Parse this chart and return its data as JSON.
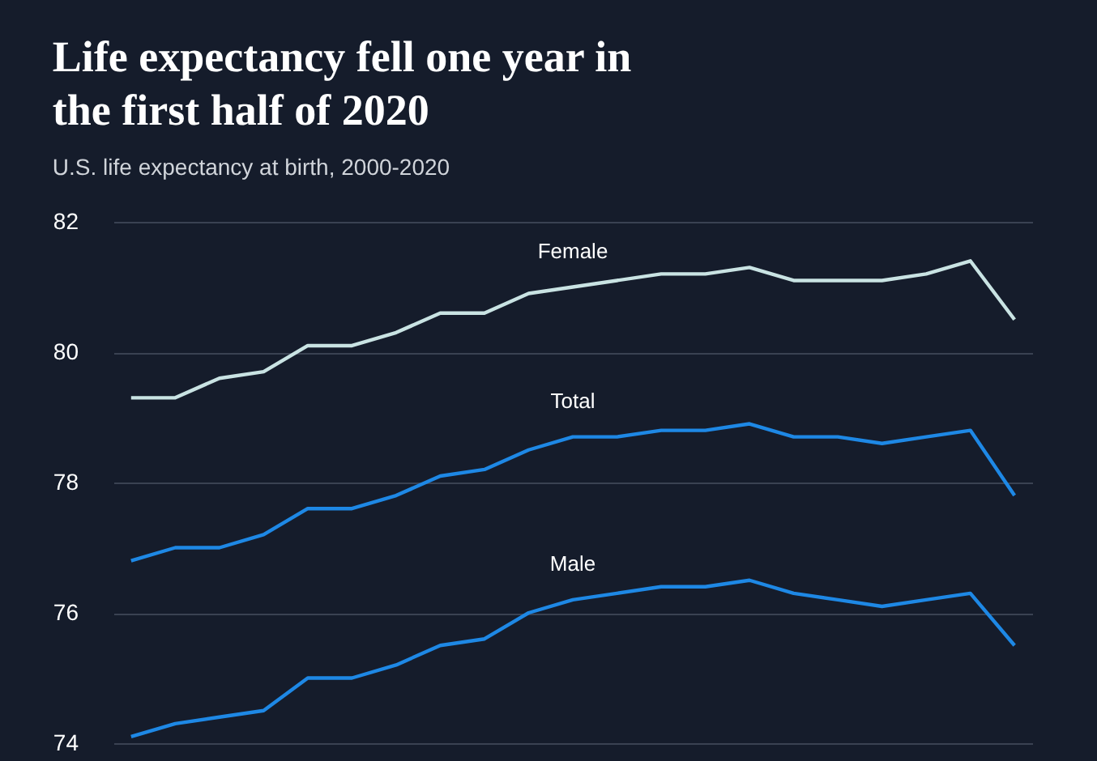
{
  "chart_data": {
    "type": "line",
    "title": "Life expectancy fell one year in the first half of 2020",
    "subtitle": "U.S. life expectancy at birth, 2000-2020",
    "categories": [
      null,
      null,
      null,
      null,
      null,
      null,
      null,
      null,
      null,
      null,
      null,
      null,
      null,
      null,
      null,
      null,
      null,
      null,
      null,
      null,
      null
    ],
    "series": [
      {
        "name": "Female",
        "color": "#c9e3e3",
        "values": [
          79.3,
          79.3,
          79.6,
          79.7,
          80.1,
          80.1,
          80.3,
          80.6,
          80.6,
          80.9,
          81.0,
          81.1,
          81.2,
          81.2,
          81.3,
          81.1,
          81.1,
          81.1,
          81.2,
          81.4,
          80.5
        ]
      },
      {
        "name": "Total",
        "color": "#1e88e5",
        "values": [
          76.8,
          77.0,
          77.0,
          77.2,
          77.6,
          77.6,
          77.8,
          78.1,
          78.2,
          78.5,
          78.7,
          78.7,
          78.8,
          78.8,
          78.9,
          78.7,
          78.7,
          78.6,
          78.7,
          78.8,
          77.8
        ]
      },
      {
        "name": "Male",
        "color": "#1e88e5",
        "values": [
          74.1,
          74.3,
          74.4,
          74.5,
          75.0,
          75.0,
          75.2,
          75.5,
          75.6,
          76.0,
          76.2,
          76.3,
          76.4,
          76.4,
          76.5,
          76.3,
          76.2,
          76.1,
          76.2,
          76.3,
          75.5
        ]
      }
    ],
    "ylim": [
      74,
      82
    ],
    "yticks": [
      74,
      76,
      78,
      80,
      82
    ],
    "grid": "y",
    "tick_labels": "y",
    "legend": false
  }
}
